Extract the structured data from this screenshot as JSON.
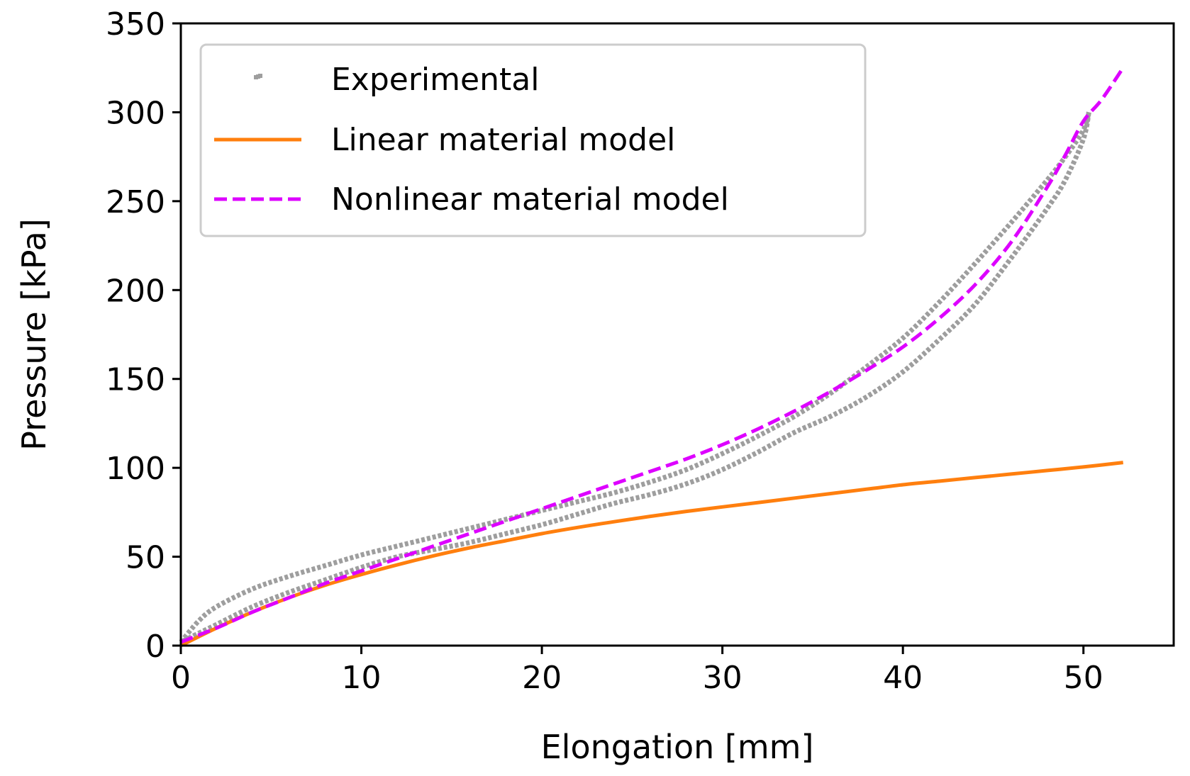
{
  "chart_data": {
    "type": "line",
    "title": "",
    "xlabel": "Elongation [mm]",
    "ylabel": "Pressure [kPa]",
    "xlim": [
      0,
      55
    ],
    "ylim": [
      0,
      350
    ],
    "xticks": [
      0,
      10,
      20,
      30,
      40,
      50
    ],
    "yticks": [
      0,
      50,
      100,
      150,
      200,
      250,
      300,
      350
    ],
    "grid": false,
    "legend_position": "upper-left",
    "series": [
      {
        "name": "Experimental",
        "style": "dotted-markers",
        "color": "#9e9e9e",
        "loading_branch": {
          "x": [
            0,
            1,
            2,
            4,
            6,
            8,
            10,
            12,
            14,
            16,
            18,
            20,
            22,
            24,
            26,
            28,
            30,
            32,
            34,
            36,
            38,
            40,
            42,
            44,
            46,
            48,
            49,
            50,
            50.3
          ],
          "y": [
            2,
            14,
            22,
            32,
            39,
            45,
            51,
            56,
            61,
            66,
            71,
            76,
            81,
            86,
            92,
            99,
            108,
            118,
            129,
            142,
            157,
            173,
            193,
            215,
            238,
            262,
            275,
            290,
            300
          ]
        },
        "unloading_branch": {
          "x": [
            50.3,
            50,
            49,
            48,
            46,
            44,
            42,
            40,
            38,
            36,
            34,
            32,
            30,
            28,
            26,
            24,
            22,
            20,
            18,
            16,
            14,
            12,
            10,
            8,
            6,
            4,
            2,
            1,
            0
          ],
          "y": [
            300,
            285,
            262,
            246,
            218,
            192,
            172,
            154,
            140,
            129,
            120,
            109,
            99,
            91,
            85,
            80,
            74,
            68,
            63,
            58,
            54,
            50,
            44,
            37,
            30,
            22,
            12,
            7,
            2
          ]
        }
      },
      {
        "name": "Linear material model",
        "style": "solid",
        "color": "#ff7f0e",
        "x": [
          0,
          2,
          4,
          6,
          8,
          10,
          12,
          14,
          16,
          18,
          20,
          22,
          24,
          26,
          28,
          30,
          32,
          34,
          36,
          38,
          40,
          42,
          44,
          46,
          48,
          50,
          52.2
        ],
        "y": [
          0,
          10,
          19,
          27,
          34,
          40,
          45.5,
          50.5,
          55,
          59,
          63,
          66.5,
          69.7,
          72.7,
          75.5,
          78,
          80.5,
          83,
          85.5,
          88,
          90.5,
          92.5,
          94.5,
          96.5,
          98.5,
          100.5,
          103
        ]
      },
      {
        "name": "Nonlinear material model",
        "style": "dashed",
        "color": "#dd00ff",
        "x": [
          0,
          2,
          4,
          6,
          8,
          10,
          12,
          14,
          16,
          18,
          20,
          22,
          24,
          26,
          28,
          30,
          32,
          34,
          36,
          38,
          40,
          42,
          44,
          46,
          48,
          49,
          50,
          51,
          52.2
        ],
        "y": [
          2,
          10,
          19,
          27,
          35,
          42,
          49,
          56,
          63,
          70,
          77,
          84,
          91,
          98,
          105,
          113,
          122,
          132,
          143,
          155,
          168,
          184,
          203,
          227,
          258,
          276,
          295,
          307,
          325
        ]
      }
    ]
  }
}
